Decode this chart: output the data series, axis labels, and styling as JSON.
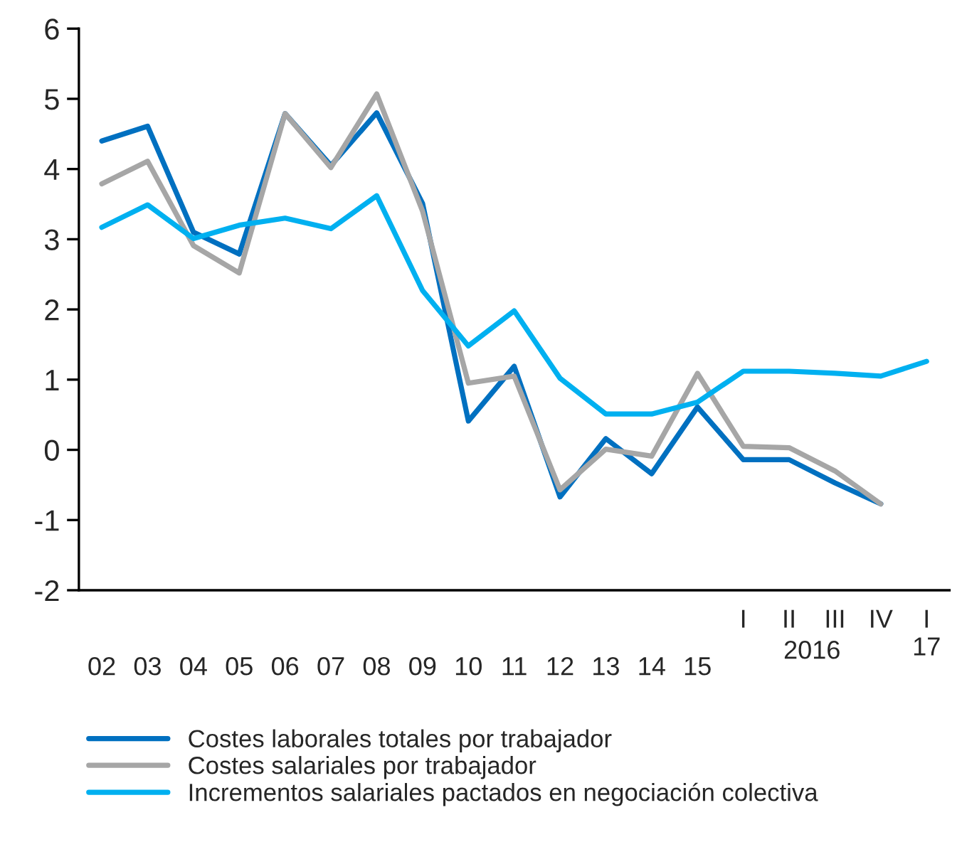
{
  "chart_data": {
    "type": "line",
    "categories": [
      "02",
      "03",
      "04",
      "05",
      "06",
      "07",
      "08",
      "09",
      "10",
      "11",
      "12",
      "13",
      "14",
      "15",
      "I",
      "II",
      "III",
      "IV",
      "I\n17"
    ],
    "series": [
      {
        "name": "Costes laborales totales por trabajador",
        "color": "#0070c0",
        "values": [
          4.4,
          4.61,
          3.1,
          2.79,
          4.79,
          4.05,
          4.8,
          3.51,
          0.41,
          1.19,
          -0.67,
          0.16,
          -0.34,
          0.61,
          -0.14,
          -0.14,
          -0.47,
          -0.77,
          null
        ]
      },
      {
        "name": "Costes salariales por trabajador",
        "color": "#a6a6a6",
        "values": [
          3.79,
          4.11,
          2.91,
          2.52,
          4.79,
          4.02,
          5.07,
          3.4,
          0.95,
          1.05,
          -0.57,
          0.01,
          -0.09,
          1.09,
          0.05,
          0.03,
          -0.3,
          -0.77,
          null
        ]
      },
      {
        "name": "Incrementos salariales pactados en negociación colectiva",
        "color": "#00b0f0",
        "values": [
          3.17,
          3.49,
          3.01,
          3.2,
          3.3,
          3.15,
          3.62,
          2.27,
          1.48,
          1.98,
          1.02,
          0.51,
          0.51,
          0.68,
          1.12,
          1.12,
          1.09,
          1.05,
          1.26
        ]
      }
    ],
    "ylim": [
      -2,
      6
    ],
    "yticks": [
      -2,
      -1,
      0,
      1,
      2,
      3,
      4,
      5,
      6
    ],
    "annotations": [
      "2016"
    ],
    "legend": "bottom",
    "grid": false,
    "marker": "none",
    "line_style": "solid"
  }
}
